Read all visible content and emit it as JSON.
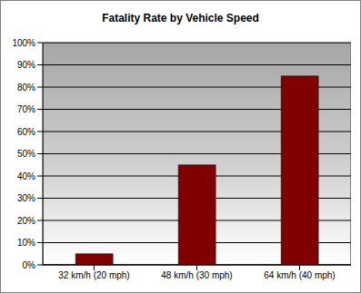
{
  "chart_data": {
    "type": "bar",
    "title": "Fatality Rate by Vehicle Speed",
    "categories": [
      "32 km/h (20 mph)",
      "48 km/h (30 mph)",
      "64 km/h (40 mph)"
    ],
    "values": [
      5,
      45,
      85
    ],
    "color": "#800000",
    "ylim": [
      0,
      100
    ],
    "yticks": [
      {
        "value": 0,
        "label": "0%"
      },
      {
        "value": 10,
        "label": "10%"
      },
      {
        "value": 20,
        "label": "20%"
      },
      {
        "value": 30,
        "label": "30%"
      },
      {
        "value": 40,
        "label": "40%"
      },
      {
        "value": 50,
        "label": "50%"
      },
      {
        "value": 60,
        "label": "60%"
      },
      {
        "value": 70,
        "label": "70%"
      },
      {
        "value": 80,
        "label": "80%"
      },
      {
        "value": 90,
        "label": "90%"
      },
      {
        "value": 100,
        "label": "100%"
      }
    ],
    "grid": true
  }
}
